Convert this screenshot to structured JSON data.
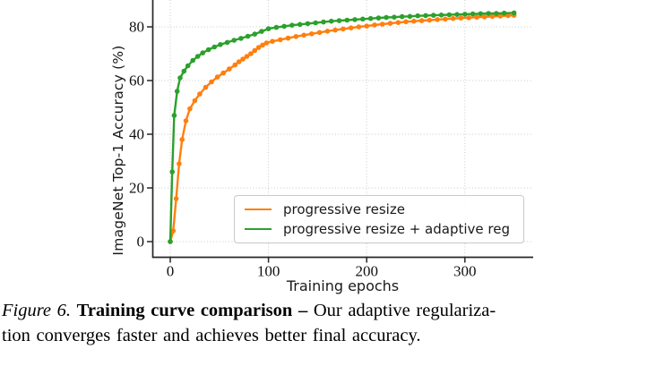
{
  "caption": {
    "figure_label": "Figure 6.",
    "bold_title": "Training curve comparison –",
    "line1_rest": "Our adaptive regulariza-",
    "line2": "tion converges faster and achieves better final accuracy."
  },
  "chart_data": {
    "type": "line",
    "title": "",
    "xlabel": "Training epochs",
    "ylabel": "ImageNet Top-1 Accuracy (%)",
    "xticks": [
      0,
      100,
      200,
      300
    ],
    "yticks": [
      0,
      20,
      40,
      60,
      80
    ],
    "xlim": [
      -18,
      370
    ],
    "ylim": [
      -6,
      90
    ],
    "grid": true,
    "legend_position": "lower right inside",
    "series": [
      {
        "name": "progressive resize",
        "color": "#ff7f0e",
        "marker": "circle",
        "points": [
          [
            0,
            0
          ],
          [
            3,
            4
          ],
          [
            6,
            16
          ],
          [
            9,
            29
          ],
          [
            12,
            38
          ],
          [
            16,
            45
          ],
          [
            20,
            49.5
          ],
          [
            25,
            52.5
          ],
          [
            30,
            55
          ],
          [
            36,
            57.5
          ],
          [
            42,
            59.5
          ],
          [
            48,
            61.3
          ],
          [
            54,
            62.8
          ],
          [
            60,
            64.3
          ],
          [
            66,
            65.8
          ],
          [
            70,
            67
          ],
          [
            74,
            68
          ],
          [
            78,
            69
          ],
          [
            82,
            70
          ],
          [
            86,
            71.2
          ],
          [
            90,
            72.3
          ],
          [
            94,
            73.2
          ],
          [
            98,
            74
          ],
          [
            104,
            74.6
          ],
          [
            112,
            75.2
          ],
          [
            120,
            75.8
          ],
          [
            128,
            76.4
          ],
          [
            136,
            76.9
          ],
          [
            144,
            77.4
          ],
          [
            152,
            77.9
          ],
          [
            160,
            78.4
          ],
          [
            168,
            78.8
          ],
          [
            176,
            79.2
          ],
          [
            184,
            79.6
          ],
          [
            192,
            80
          ],
          [
            200,
            80.3
          ],
          [
            208,
            80.7
          ],
          [
            216,
            81
          ],
          [
            224,
            81.3
          ],
          [
            232,
            81.6
          ],
          [
            240,
            81.9
          ],
          [
            248,
            82.1
          ],
          [
            256,
            82.3
          ],
          [
            264,
            82.5
          ],
          [
            272,
            82.7
          ],
          [
            280,
            82.9
          ],
          [
            288,
            83.1
          ],
          [
            296,
            83.3
          ],
          [
            304,
            83.4
          ],
          [
            312,
            83.6
          ],
          [
            320,
            83.7
          ],
          [
            328,
            83.9
          ],
          [
            336,
            84
          ],
          [
            344,
            84.2
          ],
          [
            350,
            84.3
          ]
        ]
      },
      {
        "name": "progressive resize + adaptive reg",
        "color": "#2ca02c",
        "marker": "circle",
        "points": [
          [
            0,
            0
          ],
          [
            2,
            26
          ],
          [
            4,
            47
          ],
          [
            7,
            56
          ],
          [
            10,
            61
          ],
          [
            14,
            63.5
          ],
          [
            18,
            65.5
          ],
          [
            23,
            67.5
          ],
          [
            28,
            69
          ],
          [
            33,
            70.3
          ],
          [
            39,
            71.5
          ],
          [
            45,
            72.5
          ],
          [
            51,
            73.4
          ],
          [
            58,
            74.2
          ],
          [
            65,
            75
          ],
          [
            72,
            75.7
          ],
          [
            79,
            76.5
          ],
          [
            86,
            77.3
          ],
          [
            93,
            78.3
          ],
          [
            100,
            79.3
          ],
          [
            108,
            79.8
          ],
          [
            116,
            80.2
          ],
          [
            124,
            80.6
          ],
          [
            132,
            80.9
          ],
          [
            140,
            81.2
          ],
          [
            148,
            81.5
          ],
          [
            156,
            81.8
          ],
          [
            164,
            82.1
          ],
          [
            172,
            82.3
          ],
          [
            180,
            82.5
          ],
          [
            188,
            82.7
          ],
          [
            196,
            82.9
          ],
          [
            204,
            83.1
          ],
          [
            212,
            83.3
          ],
          [
            220,
            83.5
          ],
          [
            228,
            83.6
          ],
          [
            236,
            83.8
          ],
          [
            244,
            83.9
          ],
          [
            252,
            84.1
          ],
          [
            260,
            84.2
          ],
          [
            268,
            84.3
          ],
          [
            276,
            84.4
          ],
          [
            284,
            84.5
          ],
          [
            292,
            84.6
          ],
          [
            300,
            84.7
          ],
          [
            308,
            84.8
          ],
          [
            316,
            84.9
          ],
          [
            324,
            85
          ],
          [
            332,
            85
          ],
          [
            340,
            85.1
          ],
          [
            350,
            85.2
          ]
        ]
      }
    ],
    "style": {
      "grid_color": "#c9c9c9",
      "spine_color": "#262626",
      "background": "#ffffff"
    }
  }
}
